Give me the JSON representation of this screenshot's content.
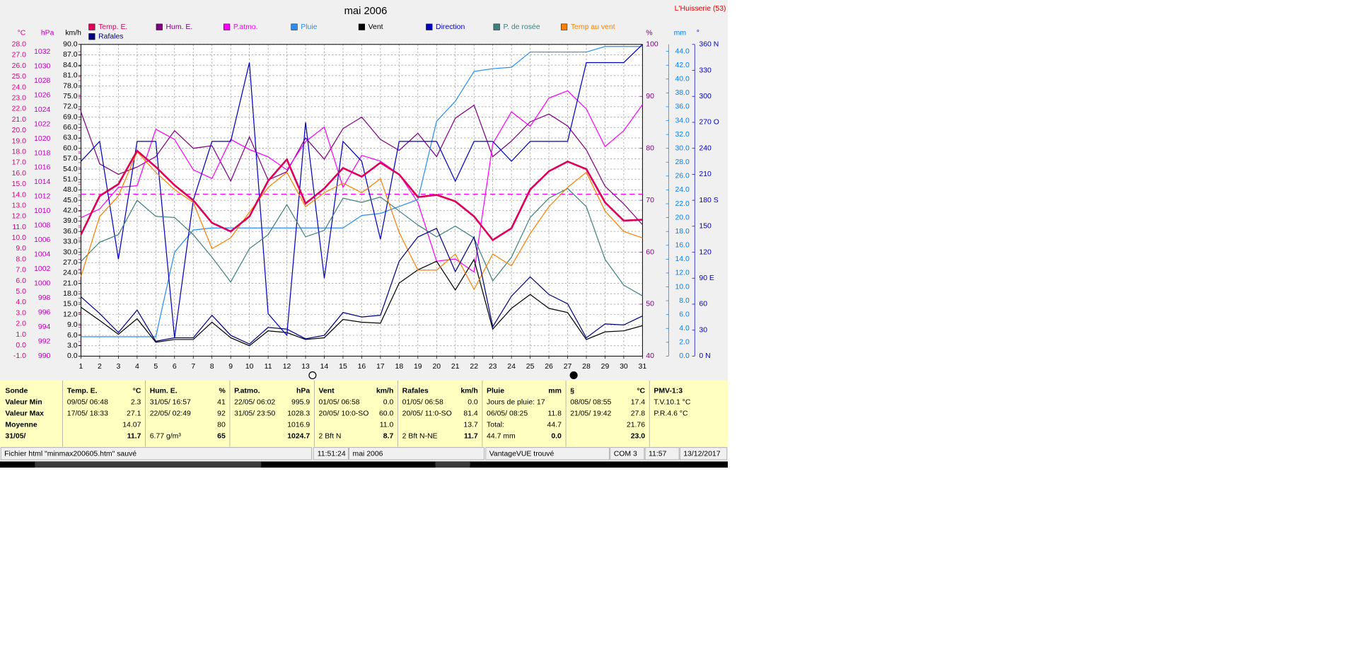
{
  "chart_data": {
    "type": "line",
    "title": "mai 2006",
    "station": "L'Huisserie (53)",
    "x": [
      1,
      2,
      3,
      4,
      5,
      6,
      7,
      8,
      9,
      10,
      11,
      12,
      13,
      14,
      15,
      16,
      17,
      18,
      19,
      20,
      21,
      22,
      23,
      24,
      25,
      26,
      27,
      28,
      29,
      30,
      31
    ],
    "xlim": [
      1,
      31
    ],
    "xticks": [
      1,
      2,
      3,
      4,
      5,
      6,
      7,
      8,
      9,
      10,
      11,
      12,
      13,
      14,
      15,
      16,
      17,
      18,
      19,
      20,
      21,
      22,
      23,
      24,
      25,
      26,
      27,
      28,
      29,
      30,
      31
    ],
    "grid": true,
    "axes": [
      {
        "unit": "°C",
        "color": "#e0007f",
        "ylim": [
          -1,
          28
        ],
        "yticks": [
          {
            "value": -1,
            "label": "-1.0"
          },
          {
            "value": 0,
            "label": "0.0"
          },
          {
            "value": 1,
            "label": "1.0"
          },
          {
            "value": 2,
            "label": "2.0"
          },
          {
            "value": 3,
            "label": "3.0"
          },
          {
            "value": 4,
            "label": "4.0"
          },
          {
            "value": 5,
            "label": "5.0"
          },
          {
            "value": 6,
            "label": "6.0"
          },
          {
            "value": 7,
            "label": "7.0"
          },
          {
            "value": 8,
            "label": "8.0"
          },
          {
            "value": 9,
            "label": "9.0"
          },
          {
            "value": 10,
            "label": "10.0"
          },
          {
            "value": 11,
            "label": "11.0"
          },
          {
            "value": 12,
            "label": "12.0"
          },
          {
            "value": 13,
            "label": "13.0"
          },
          {
            "value": 14,
            "label": "14.0"
          },
          {
            "value": 15,
            "label": "15.0"
          },
          {
            "value": 16,
            "label": "16.0"
          },
          {
            "value": 17,
            "label": "17.0"
          },
          {
            "value": 18,
            "label": "18.0"
          },
          {
            "value": 19,
            "label": "19.0"
          },
          {
            "value": 20,
            "label": "20.0"
          },
          {
            "value": 21,
            "label": "21.0"
          },
          {
            "value": 22,
            "label": "22.0"
          },
          {
            "value": 23,
            "label": "23.0"
          },
          {
            "value": 24,
            "label": "24.0"
          },
          {
            "value": 25,
            "label": "25.0"
          },
          {
            "value": 26,
            "label": "26.0"
          },
          {
            "value": 27,
            "label": "27.0"
          },
          {
            "value": 28,
            "label": "28.0"
          }
        ]
      },
      {
        "unit": "hPa",
        "color": "#c000c0",
        "ylim": [
          990,
          1033
        ],
        "yticks": [
          990,
          992,
          994,
          996,
          998,
          1000,
          1002,
          1004,
          1006,
          1008,
          1010,
          1012,
          1014,
          1016,
          1018,
          1020,
          1022,
          1024,
          1026,
          1028,
          1030,
          1032
        ]
      },
      {
        "unit": "km/h",
        "color": "#000000",
        "grid": true,
        "ylim": [
          0,
          90
        ],
        "yticks": [
          {
            "value": 0,
            "label": "0.0"
          },
          {
            "value": 3,
            "label": "3.0"
          },
          {
            "value": 6,
            "label": "6.0"
          },
          {
            "value": 9,
            "label": "9.0"
          },
          {
            "value": 12,
            "label": "12.0"
          },
          {
            "value": 15,
            "label": "15.0"
          },
          {
            "value": 18,
            "label": "18.0"
          },
          {
            "value": 21,
            "label": "21.0"
          },
          {
            "value": 24,
            "label": "24.0"
          },
          {
            "value": 27,
            "label": "27.0"
          },
          {
            "value": 30,
            "label": "30.0"
          },
          {
            "value": 33,
            "label": "33.0"
          },
          {
            "value": 36,
            "label": "36.0"
          },
          {
            "value": 39,
            "label": "39.0"
          },
          {
            "value": 42,
            "label": "42.0"
          },
          {
            "value": 45,
            "label": "45.0"
          },
          {
            "value": 48,
            "label": "48.0"
          },
          {
            "value": 51,
            "label": "51.0"
          },
          {
            "value": 54,
            "label": "54.0"
          },
          {
            "value": 57,
            "label": "57.0"
          },
          {
            "value": 60,
            "label": "60.0"
          },
          {
            "value": 63,
            "label": "63.0"
          },
          {
            "value": 66,
            "label": "66.0"
          },
          {
            "value": 69,
            "label": "69.0"
          },
          {
            "value": 72,
            "label": "72.0"
          },
          {
            "value": 75,
            "label": "75.0"
          },
          {
            "value": 78,
            "label": "78.0"
          },
          {
            "value": 81,
            "label": "81.0"
          },
          {
            "value": 84,
            "label": "84.0"
          },
          {
            "value": 87,
            "label": "87.0"
          },
          {
            "value": 90,
            "label": "90.0"
          }
        ]
      },
      {
        "unit": "%",
        "color": "#800080",
        "ylim": [
          40,
          100
        ],
        "yticks": [
          40,
          50,
          60,
          70,
          80,
          90,
          100
        ]
      },
      {
        "unit": "mm",
        "color": "#0080ff",
        "ylim": [
          0,
          45
        ],
        "yticks": [
          {
            "value": 0,
            "label": "0.0"
          },
          {
            "value": 2,
            "label": "2.0"
          },
          {
            "value": 4,
            "label": "4.0"
          },
          {
            "value": 6,
            "label": "6.0"
          },
          {
            "value": 8,
            "label": "8.0"
          },
          {
            "value": 10,
            "label": "10.0"
          },
          {
            "value": 12,
            "label": "12.0"
          },
          {
            "value": 14,
            "label": "14.0"
          },
          {
            "value": 16,
            "label": "16.0"
          },
          {
            "value": 18,
            "label": "18.0"
          },
          {
            "value": 20,
            "label": "20.0"
          },
          {
            "value": 22,
            "label": "22.0"
          },
          {
            "value": 24,
            "label": "24.0"
          },
          {
            "value": 26,
            "label": "26.0"
          },
          {
            "value": 28,
            "label": "28.0"
          },
          {
            "value": 30,
            "label": "30.0"
          },
          {
            "value": 32,
            "label": "32.0"
          },
          {
            "value": 34,
            "label": "34.0"
          },
          {
            "value": 36,
            "label": "36.0"
          },
          {
            "value": 38,
            "label": "38.0"
          },
          {
            "value": 40,
            "label": "40.0"
          },
          {
            "value": 42,
            "label": "42.0"
          },
          {
            "value": 44,
            "label": "44.0"
          }
        ]
      },
      {
        "unit": "°",
        "color": "#0000c0",
        "ylim": [
          0,
          360
        ],
        "yticks": [
          {
            "value": 0,
            "label": "0  N"
          },
          30,
          60,
          {
            "value": 90,
            "label": "90  E"
          },
          120,
          150,
          {
            "value": 180,
            "label": "180 S"
          },
          210,
          240,
          {
            "value": 270,
            "label": "270 O"
          },
          300,
          330,
          {
            "value": 360,
            "label": "360 N"
          }
        ]
      }
    ],
    "series": [
      {
        "name": "Temp. E.",
        "color": "#e0005a",
        "width": 2,
        "axis": 0,
        "values": [
          10.3,
          13.9,
          15,
          18.1,
          16.6,
          14.9,
          13.5,
          11.4,
          10.6,
          12,
          15.3,
          17.3,
          13.2,
          14.6,
          16.5,
          15.7,
          17,
          15.9,
          13.8,
          14,
          13.4,
          12,
          9.8,
          10.9,
          14.5,
          16.2,
          17.1,
          16.4,
          13.3,
          11.6,
          11.7
        ]
      },
      {
        "name": "Hum. E.",
        "color": "#800080",
        "width": 1,
        "axis": 3,
        "values": [
          87,
          77,
          75,
          76.4,
          78.4,
          83.4,
          80,
          80.5,
          73.7,
          82.2,
          73.9,
          75.5,
          82,
          77.9,
          83.8,
          86,
          81.7,
          79.6,
          82.9,
          78.4,
          85.8,
          88.3,
          78.4,
          81.4,
          85.1,
          86.6,
          84.3,
          79.7,
          72.7,
          69.3,
          65.3
        ]
      },
      {
        "name": "P.atmo.",
        "color": "#ff00ff",
        "width": 1,
        "axis": 1,
        "values": [
          1009.1,
          1010.3,
          1013.3,
          1013.5,
          1021.3,
          1019.9,
          1015.7,
          1014.5,
          1019.9,
          1018.5,
          1017.5,
          1015.7,
          1019.6,
          1021.6,
          1013.3,
          1017.7,
          1016.9,
          1015.1,
          1011.2,
          1003.1,
          1003.4,
          1001.6,
          1019.3,
          1023.7,
          1021.7,
          1025.6,
          1026.6,
          1024.1,
          1018.9,
          1021.1,
          1024.7
        ]
      },
      {
        "name": "Pluie",
        "color": "#2a8ff0",
        "width": 1,
        "axis": 4,
        "values": [
          2.8,
          2.8,
          2.8,
          2.8,
          2.8,
          15,
          18.2,
          18.5,
          18.5,
          18.5,
          18.5,
          18.5,
          18.5,
          18.5,
          18.5,
          20.3,
          20.6,
          21.6,
          22.6,
          33.9,
          36.8,
          41.1,
          41.5,
          41.7,
          43.9,
          43.9,
          43.9,
          43.9,
          44.7,
          44.7,
          44.7
        ]
      },
      {
        "name": "Vent",
        "color": "#000000",
        "width": 1,
        "axis": 2,
        "values": [
          14.1,
          10.3,
          6.3,
          10.8,
          4,
          4.8,
          4.8,
          9.8,
          5.3,
          3,
          7.3,
          6.8,
          4.8,
          5.3,
          10.6,
          9.8,
          9.5,
          21.1,
          24.9,
          27.4,
          19.1,
          27.9,
          7.8,
          13.8,
          17.8,
          13.8,
          12.6,
          4.8,
          7,
          7.3,
          8.8
        ]
      },
      {
        "name": "Direction",
        "color": "#0000c0",
        "width": 1,
        "axis": 5,
        "values": [
          225,
          248,
          112,
          248,
          248,
          21,
          180,
          248,
          248,
          339,
          49,
          24,
          270,
          90,
          248,
          225,
          135,
          248,
          248,
          248,
          202,
          248,
          248,
          225,
          248,
          248,
          248,
          339,
          339,
          339,
          360
        ]
      },
      {
        "name": "P. de rosée",
        "color": "#408080",
        "width": 1,
        "axis": 0,
        "values": [
          7.8,
          9.6,
          10.3,
          13.5,
          12,
          11.9,
          10.3,
          8.2,
          5.9,
          9,
          10.3,
          13.1,
          10.1,
          10.7,
          13.7,
          13.3,
          13.8,
          12.5,
          11.2,
          10.1,
          11.1,
          10,
          6,
          8.2,
          11.9,
          13.7,
          14.6,
          12.9,
          8,
          5.6,
          4.6
        ]
      },
      {
        "name": "Temp au vent",
        "color": "#ff8000",
        "width": 1,
        "axis": 0,
        "values": [
          6.4,
          12,
          13.9,
          18,
          16.1,
          14.5,
          13.3,
          9,
          10,
          12.4,
          14.7,
          16.1,
          12.9,
          14.2,
          15.1,
          14.2,
          15.5,
          10.5,
          7,
          7,
          8.5,
          5.2,
          8.5,
          7.4,
          10.4,
          12.9,
          14.7,
          16.1,
          12.5,
          10.6,
          10
        ]
      },
      {
        "name": "Rafales",
        "color": "#000080",
        "width": 1,
        "axis": 2,
        "values": [
          17.1,
          12.3,
          6.8,
          13.3,
          4.3,
          5.3,
          5.3,
          11.8,
          6,
          3.5,
          8.3,
          7.8,
          5,
          6,
          12.6,
          11.3,
          11.8,
          27.4,
          34.4,
          36.9,
          24.4,
          34.4,
          8.5,
          17.3,
          22.9,
          17.8,
          15.1,
          5.3,
          9.3,
          9,
          11.6
        ]
      }
    ],
    "mean_line": {
      "value": 14.07,
      "axis": 0,
      "color": "#ff00ff"
    }
  },
  "stats": {
    "row_labels": [
      "Sonde",
      "Valeur Min",
      "Valeur Max",
      "Moyenne",
      "31/05/"
    ],
    "columns": [
      {
        "name": "Temp. E.",
        "unit": "°C",
        "cells": [
          {
            "left": "09/05/  06:48",
            "right": "2.3"
          },
          {
            "left": "17/05/  18:33",
            "right": "27.1"
          },
          {
            "right": "14.07"
          },
          {
            "right": "11.7"
          }
        ]
      },
      {
        "name": "Hum. E.",
        "unit": "%",
        "cells": [
          {
            "left": "31/05/  16:57",
            "right": "41"
          },
          {
            "left": "22/05/  02:49",
            "right": "92"
          },
          {
            "right": "80"
          },
          {
            "left": "6.77 g/m³",
            "right": "65"
          }
        ]
      },
      {
        "name": "P.atmo.",
        "unit": "hPa",
        "cells": [
          {
            "left": "22/05/  06:02",
            "right": "995.9"
          },
          {
            "left": "31/05/  23:50",
            "right": "1028.3"
          },
          {
            "right": "1016.9"
          },
          {
            "right": "1024.7"
          }
        ]
      },
      {
        "name": "Vent",
        "unit": "km/h",
        "cells": [
          {
            "left": "01/05/  06:58",
            "right": "0.0"
          },
          {
            "left": "20/05/  10:0-SO",
            "right": "60.0"
          },
          {
            "right": "11.0"
          },
          {
            "left": "2 Bft N",
            "right": "8.7"
          }
        ]
      },
      {
        "name": "Rafales",
        "unit": "km/h",
        "cells": [
          {
            "left": "01/05/  06:58",
            "right": "0.0"
          },
          {
            "left": "20/05/  11:0-SO",
            "right": "81.4"
          },
          {
            "right": "13.7"
          },
          {
            "left": "2 Bft N-NE",
            "right": "11.7"
          }
        ]
      },
      {
        "name": "Pluie",
        "unit": "mm",
        "cells": [
          {
            "left": "Jours de pluie: 17"
          },
          {
            "left": "06/05/  08:25",
            "right": "11.8"
          },
          {
            "left": "Total:",
            "right": "44.7"
          },
          {
            "left": "44.7 mm",
            "right": "0.0"
          }
        ]
      },
      {
        "name": "§",
        "unit": "°C",
        "cells": [
          {
            "left": "08/05/  08:55",
            "right": "17.4"
          },
          {
            "left": "21/05/  19:42",
            "right": "27.8"
          },
          {
            "right": "21.76"
          },
          {
            "right": "23.0"
          }
        ]
      },
      {
        "name": "PMV-1:3",
        "cells": [
          {
            "left": "T.V.10.1 °C"
          },
          {
            "left": "P.R.4.6 °C"
          }
        ]
      }
    ]
  },
  "status_bar": [
    "Fichier html  \"minmax200605.htm\"  sauvé",
    "11:51:24",
    "mai 2006",
    "VantageVUE trouvé",
    "COM 3",
    "11:57",
    "13/12/2017"
  ]
}
